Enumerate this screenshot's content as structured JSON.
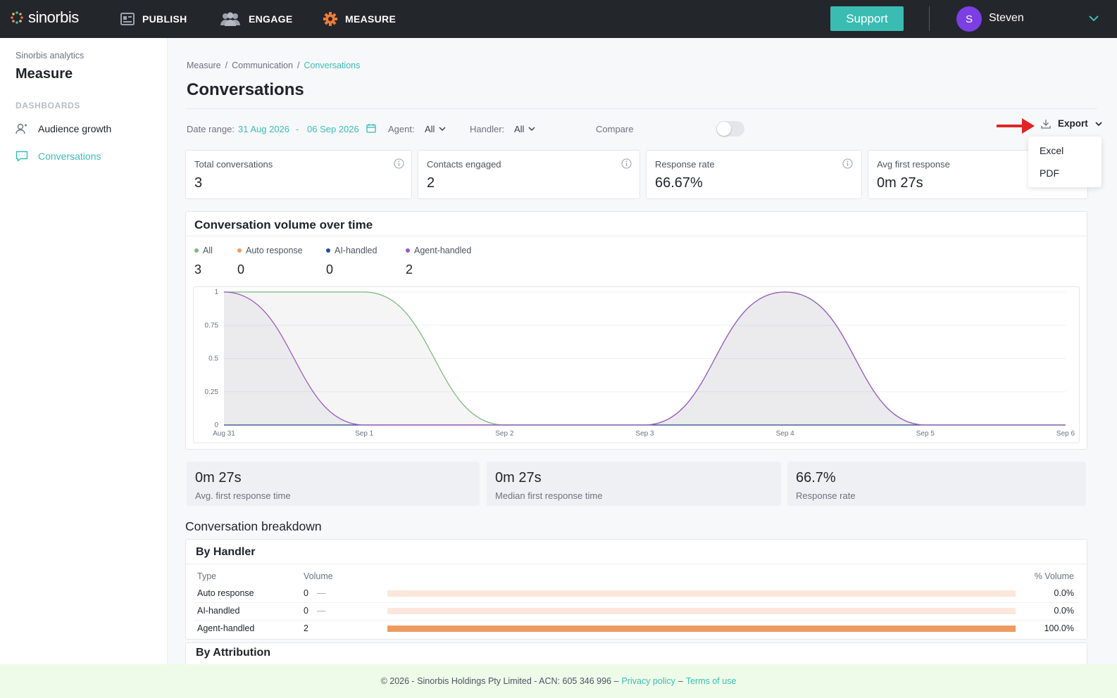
{
  "brand": {
    "name": "sinorbis",
    "accent": "#3bbcb3",
    "orange": "#ee9b62"
  },
  "topnav": {
    "items": [
      {
        "label": "PUBLISH",
        "icon": "publish-icon"
      },
      {
        "label": "ENGAGE",
        "icon": "users-icon"
      },
      {
        "label": "MEASURE",
        "icon": "gear-icon"
      }
    ],
    "support_label": "Support",
    "user_initial": "S",
    "user_name": "Steven"
  },
  "sidebar": {
    "subtitle": "Sinorbis analytics",
    "title": "Measure",
    "section": "DASHBOARDS",
    "items": [
      {
        "label": "Audience growth",
        "icon": "audience-icon",
        "active": false
      },
      {
        "label": "Conversations",
        "icon": "chat-icon",
        "active": true
      }
    ]
  },
  "breadcrumb": {
    "items": [
      "Measure",
      "Communication",
      "Conversations"
    ],
    "separator": "/"
  },
  "page_title": "Conversations",
  "filters": {
    "date_label": "Date range:",
    "date_from": "31 Aug 2026",
    "date_sep": "-",
    "date_to": "06 Sep 2026",
    "agent_label": "Agent:",
    "agent_value": "All",
    "handler_label": "Handler:",
    "handler_value": "All",
    "compare_label": "Compare",
    "compare_on": false
  },
  "export": {
    "label": "Export",
    "options": [
      "Excel",
      "PDF"
    ]
  },
  "kpis": [
    {
      "label": "Total conversations",
      "value": "3"
    },
    {
      "label": "Contacts engaged",
      "value": "2"
    },
    {
      "label": "Response rate",
      "value": "66.67%"
    },
    {
      "label": "Avg first response",
      "value": "0m 27s"
    }
  ],
  "volume": {
    "title": "Conversation volume over time",
    "legend": [
      {
        "name": "All",
        "value": "3",
        "color": "#7fb77e"
      },
      {
        "name": "Auto response",
        "value": "0",
        "color": "#ee9b62"
      },
      {
        "name": "AI-handled",
        "value": "0",
        "color": "#1f4e9c"
      },
      {
        "name": "Agent-handled",
        "value": "2",
        "color": "#9b59c6"
      }
    ]
  },
  "chart_data": {
    "type": "area",
    "x": [
      "Aug 31",
      "Sep 1",
      "Sep 2",
      "Sep 3",
      "Sep 4",
      "Sep 5",
      "Sep 6"
    ],
    "series": [
      {
        "name": "All",
        "color": "#7fb77e",
        "values": [
          1,
          1,
          0,
          0,
          1,
          0,
          0
        ]
      },
      {
        "name": "Auto response",
        "color": "#ee9b62",
        "values": [
          0,
          0,
          0,
          0,
          0,
          0,
          0
        ]
      },
      {
        "name": "AI-handled",
        "color": "#1f4e9c",
        "values": [
          0,
          0,
          0,
          0,
          0,
          0,
          0
        ]
      },
      {
        "name": "Agent-handled",
        "color": "#9b59c6",
        "values": [
          1,
          0,
          0,
          0,
          1,
          0,
          0
        ]
      }
    ],
    "ylim": [
      0,
      1
    ],
    "yticks": [
      "0",
      "0.25",
      "0.5",
      "0.75",
      "1"
    ],
    "grid": true,
    "legend_position": "top-left"
  },
  "stats": [
    {
      "value": "0m 27s",
      "label": "Avg. first response time"
    },
    {
      "value": "0m 27s",
      "label": "Median first response time"
    },
    {
      "value": "66.7%",
      "label": "Response rate"
    }
  ],
  "breakdown": {
    "title": "Conversation breakdown",
    "by_handler": {
      "title": "By Handler",
      "columns": [
        "Type",
        "Volume",
        "% Volume"
      ],
      "rows": [
        {
          "type": "Auto response",
          "volume": "0",
          "dash": "—",
          "pct": "0.0%",
          "fraction": 0
        },
        {
          "type": "AI-handled",
          "volume": "0",
          "dash": "—",
          "pct": "0.0%",
          "fraction": 0
        },
        {
          "type": "Agent-handled",
          "volume": "2",
          "dash": "",
          "pct": "100.0%",
          "fraction": 1
        }
      ]
    },
    "by_attribution_title": "By Attribution"
  },
  "footer": {
    "text": "© 2026 - Sinorbis Holdings Pty Limited - ACN: 605 346 996 –",
    "privacy": "Privacy policy",
    "dash": "–",
    "terms": "Terms of use"
  }
}
